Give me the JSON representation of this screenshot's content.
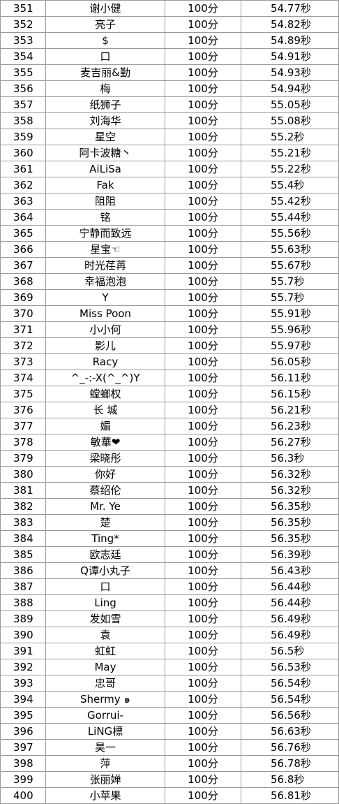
{
  "rows": [
    {
      "rank": "351",
      "name": "谢小健",
      "score": "100分",
      "time": "54.77秒"
    },
    {
      "rank": "352",
      "name": "亮子",
      "score": "100分",
      "time": "54.82秒"
    },
    {
      "rank": "353",
      "name": "$",
      "score": "100分",
      "time": "54.89秒"
    },
    {
      "rank": "354",
      "name": "口",
      "score": "100分",
      "time": "54.91秒"
    },
    {
      "rank": "355",
      "name": "麦吉丽&勤",
      "score": "100分",
      "time": "54.93秒"
    },
    {
      "rank": "356",
      "name": "梅",
      "score": "100分",
      "time": "54.94秒"
    },
    {
      "rank": "357",
      "name": "纸狮子",
      "score": "100分",
      "time": "55.05秒"
    },
    {
      "rank": "358",
      "name": "刘海华",
      "score": "100分",
      "time": "55.08秒"
    },
    {
      "rank": "359",
      "name": "星空",
      "score": "100分",
      "time": "55.2秒"
    },
    {
      "rank": "360",
      "name": "阿卡波糖丶",
      "score": "100分",
      "time": "55.21秒"
    },
    {
      "rank": "361",
      "name": "AiLiSa",
      "score": "100分",
      "time": "55.22秒"
    },
    {
      "rank": "362",
      "name": "Fak",
      "score": "100分",
      "time": "55.4秒"
    },
    {
      "rank": "363",
      "name": "阻阻",
      "score": "100分",
      "time": "55.42秒"
    },
    {
      "rank": "364",
      "name": "铭",
      "score": "100分",
      "time": "55.44秒"
    },
    {
      "rank": "365",
      "name": "宁静而致远",
      "score": "100分",
      "time": "55.56秒"
    },
    {
      "rank": "366",
      "name": "星宝☜",
      "score": "100分",
      "time": "55.63秒"
    },
    {
      "rank": "367",
      "name": "时光荏苒",
      "score": "100分",
      "time": "55.67秒"
    },
    {
      "rank": "368",
      "name": "幸福泡泡",
      "score": "100分",
      "time": "55.7秒"
    },
    {
      "rank": "369",
      "name": "Y",
      "score": "100分",
      "time": "55.7秒"
    },
    {
      "rank": "370",
      "name": "Miss  Poon",
      "score": "100分",
      "time": "55.91秒"
    },
    {
      "rank": "371",
      "name": "小小何",
      "score": "100分",
      "time": "55.96秒"
    },
    {
      "rank": "372",
      "name": "影儿",
      "score": "100分",
      "time": "55.97秒"
    },
    {
      "rank": "373",
      "name": "Racy",
      "score": "100分",
      "time": "56.05秒"
    },
    {
      "rank": "374",
      "name": "^_-:-X(^_^)Y",
      "score": "100分",
      "time": "56.11秒"
    },
    {
      "rank": "375",
      "name": "螳螂权",
      "score": "100分",
      "time": "56.15秒"
    },
    {
      "rank": "376",
      "name": "长     城",
      "score": "100分",
      "time": "56.21秒"
    },
    {
      "rank": "377",
      "name": "媚",
      "score": "100分",
      "time": "56.23秒"
    },
    {
      "rank": "378",
      "name": "敏華❤",
      "score": "100分",
      "time": "56.27秒"
    },
    {
      "rank": "379",
      "name": "梁晓彤",
      "score": "100分",
      "time": "56.3秒"
    },
    {
      "rank": "380",
      "name": "你好",
      "score": "100分",
      "time": "56.32秒"
    },
    {
      "rank": "381",
      "name": "蔡绍伦",
      "score": "100分",
      "time": "56.32秒"
    },
    {
      "rank": "382",
      "name": "Mr. Ye",
      "score": "100分",
      "time": "56.35秒"
    },
    {
      "rank": "383",
      "name": "楚",
      "score": "100分",
      "time": "56.35秒"
    },
    {
      "rank": "384",
      "name": "Ting*",
      "score": "100分",
      "time": "56.35秒"
    },
    {
      "rank": "385",
      "name": "欧志廷",
      "score": "100分",
      "time": "56.39秒"
    },
    {
      "rank": "386",
      "name": "Q谭小丸子",
      "score": "100分",
      "time": "56.43秒"
    },
    {
      "rank": "387",
      "name": "口",
      "score": "100分",
      "time": "56.44秒"
    },
    {
      "rank": "388",
      "name": "Ling",
      "score": "100分",
      "time": "56.44秒"
    },
    {
      "rank": "389",
      "name": "发如雪",
      "score": "100分",
      "time": "56.49秒"
    },
    {
      "rank": "390",
      "name": "袁",
      "score": "100分",
      "time": "56.49秒"
    },
    {
      "rank": "391",
      "name": "虹虹",
      "score": "100分",
      "time": "56.5秒"
    },
    {
      "rank": "392",
      "name": "May",
      "score": "100分",
      "time": "56.53秒"
    },
    {
      "rank": "393",
      "name": "忠哥",
      "score": "100分",
      "time": "56.54秒"
    },
    {
      "rank": "394",
      "name": "Shermy ๑",
      "score": "100分",
      "time": "56.54秒"
    },
    {
      "rank": "395",
      "name": "Gorrui-",
      "score": "100分",
      "time": "56.56秒"
    },
    {
      "rank": "396",
      "name": "LiNG標",
      "score": "100分",
      "time": "56.63秒"
    },
    {
      "rank": "397",
      "name": "昊一",
      "score": "100分",
      "time": "56.76秒"
    },
    {
      "rank": "398",
      "name": "  萍",
      "score": "100分",
      "time": "56.78秒"
    },
    {
      "rank": "399",
      "name": "张丽婵",
      "score": "100分",
      "time": "56.8秒"
    },
    {
      "rank": "400",
      "name": "小苹果",
      "score": "100分",
      "time": "56.81秒"
    }
  ]
}
